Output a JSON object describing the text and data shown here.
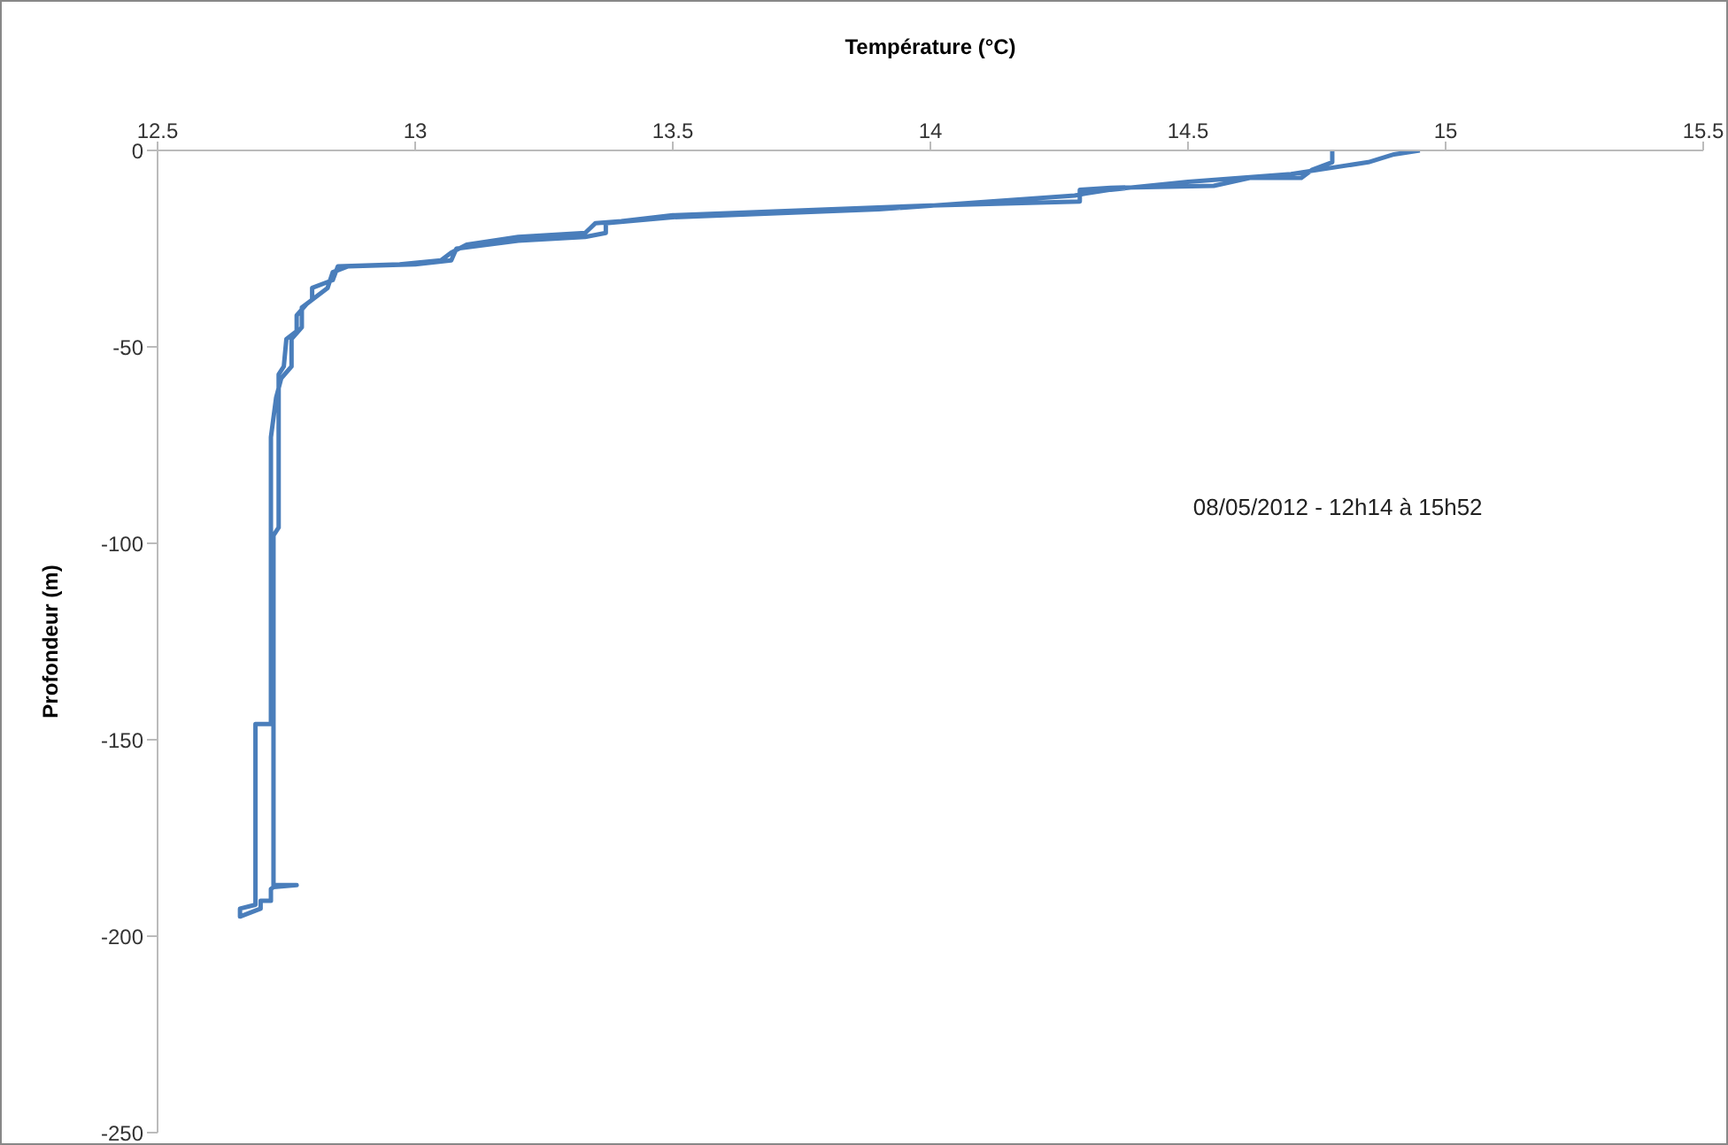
{
  "chart_data": {
    "type": "line",
    "xlabel": "Température (°C)",
    "ylabel": "Profondeur (m)",
    "xlim": [
      12.5,
      15.5
    ],
    "xticks": [
      12.5,
      13,
      13.5,
      14,
      14.5,
      15,
      15.5
    ],
    "ylim": [
      -250,
      0
    ],
    "yticks": [
      0,
      -50,
      -100,
      -150,
      -200,
      -250
    ],
    "grid": false,
    "legend": false,
    "marker": "none",
    "line_style": "solid",
    "annotations": [
      "08/05/2012 - 12h14 à 15h52"
    ],
    "series": [
      {
        "color": "#4a7ebb",
        "x": [
          14.78,
          14.78,
          14.74,
          14.72,
          14.62,
          14.55,
          14.35,
          14.29,
          14.29,
          14.0,
          13.5,
          13.4,
          13.35,
          13.33,
          13.2,
          13.1,
          13.07,
          13.05,
          12.97,
          12.85,
          12.84,
          12.8,
          12.8,
          12.78,
          12.78,
          12.76,
          12.76,
          12.74,
          12.73,
          12.72,
          12.72,
          12.69,
          12.69,
          12.66,
          12.66,
          12.7,
          12.7,
          12.72,
          12.72,
          12.725,
          12.77,
          12.725,
          12.725,
          12.735,
          12.735,
          12.745,
          12.75,
          12.77,
          12.77,
          12.79,
          12.8,
          12.83,
          12.84,
          12.87,
          13.0,
          13.07,
          13.08,
          13.2,
          13.33,
          13.37,
          13.37,
          13.5,
          13.9,
          14.28,
          14.3,
          14.35,
          14.5,
          14.7,
          14.85,
          14.9,
          14.95
        ],
        "values": [
          0,
          -3,
          -5,
          -7,
          -7,
          -9,
          -9.5,
          -10,
          -13,
          -14,
          -16.5,
          -18,
          -18.5,
          -21,
          -22,
          -24,
          -26,
          -28,
          -29,
          -29.5,
          -33,
          -35,
          -38,
          -40,
          -45,
          -48,
          -55,
          -58,
          -63,
          -73,
          -146,
          -146,
          -192,
          -193,
          -195,
          -193,
          -191,
          -191,
          -188,
          -187.5,
          -187,
          -187,
          -98,
          -96,
          -57,
          -55,
          -48,
          -46,
          -42,
          -39,
          -38,
          -35,
          -31,
          -29.5,
          -29,
          -28,
          -25,
          -23,
          -22,
          -21,
          -18.5,
          -17,
          -15,
          -11.5,
          -11,
          -10,
          -8,
          -6,
          -3,
          -1,
          0
        ]
      }
    ]
  }
}
